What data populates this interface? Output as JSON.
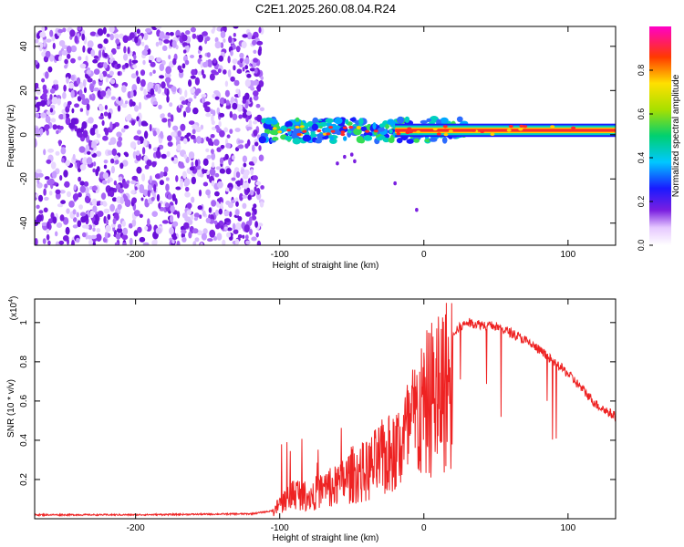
{
  "title": "C2E1.2025.260.08.04.R24",
  "chart_data": [
    {
      "type": "heatmap",
      "name": "spectrogram",
      "xlabel": "Height of straight line (km)",
      "ylabel": "Frequency (Hz)",
      "xlim": [
        -270,
        133
      ],
      "ylim": [
        -50,
        49
      ],
      "xticks": [
        -200,
        -100,
        0,
        100
      ],
      "yticks": [
        -40,
        -20,
        0,
        20,
        40
      ],
      "colorbar": {
        "label": "Normalized spectral amplitude",
        "range": [
          0.0,
          1.0
        ],
        "ticks": [
          "0.0",
          "0.2",
          "0.4",
          "0.6",
          "0.8"
        ]
      },
      "regions": [
        {
          "description": "broadband noise",
          "x": [
            -270,
            -112
          ],
          "y": [
            -50,
            49
          ],
          "amplitude": 0.25
        },
        {
          "description": "signal band",
          "x": [
            -112,
            133
          ],
          "y_center": 2,
          "amplitude": 0.95
        }
      ]
    },
    {
      "type": "line",
      "name": "snr",
      "xlabel": "Height of straight line (km)",
      "ylabel": "SNR (10 * v/v)",
      "scale_label": "(x10",
      "scale_exp": "4",
      "scale_close": ")",
      "xlim": [
        -270,
        133
      ],
      "ylim": [
        0,
        1.12
      ],
      "xticks": [
        -200,
        -100,
        0,
        100
      ],
      "yticks": [
        0.2,
        0.4,
        0.6,
        0.8,
        1.0
      ],
      "ytick_labels": [
        "0.2",
        "0.4",
        "0.6",
        "0.8",
        "1"
      ],
      "series": [
        {
          "name": "SNR",
          "color": "#ee2222",
          "x": [
            -270,
            -200,
            -120,
            -105,
            -100,
            -90,
            -80,
            -70,
            -60,
            -50,
            -40,
            -30,
            -20,
            -10,
            0,
            10,
            20,
            30,
            40,
            50,
            60,
            70,
            80,
            90,
            100,
            110,
            120,
            133
          ],
          "y": [
            0.02,
            0.02,
            0.025,
            0.04,
            0.1,
            0.18,
            0.15,
            0.2,
            0.22,
            0.3,
            0.32,
            0.4,
            0.45,
            0.6,
            0.75,
            0.88,
            0.95,
            1.0,
            0.99,
            0.98,
            0.95,
            0.91,
            0.86,
            0.8,
            0.74,
            0.66,
            0.58,
            0.52
          ]
        }
      ]
    }
  ]
}
